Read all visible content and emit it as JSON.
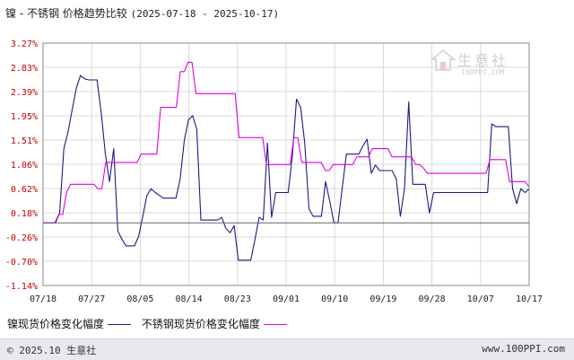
{
  "title": {
    "text": "镍 - 不锈钢 价格趋势比较",
    "date_range": "(2025-07-18 - 2025-10-17)"
  },
  "colors": {
    "nickel": "#1a1a80",
    "stainless": "#e000e0",
    "axis": "#888888",
    "grid": "#d8d8d8",
    "tick_y": "#c00000"
  },
  "legend": {
    "nickel": "镍现货价格变化幅度",
    "stainless": "不锈钢现货价格变化幅度"
  },
  "watermark": {
    "cn": "生意社",
    "en": "100PPI.COM"
  },
  "footer": {
    "copyright": "© 2025.10 生意社",
    "url": "www.100PPI.com"
  },
  "chart_data": {
    "type": "line",
    "x_tick_labels": [
      "07/18",
      "07/27",
      "08/05",
      "08/14",
      "08/23",
      "09/01",
      "09/10",
      "09/19",
      "09/28",
      "10/07",
      "10/17"
    ],
    "y_tick_labels": [
      "3.27%",
      "2.83%",
      "2.39%",
      "1.95%",
      "1.51%",
      "1.06%",
      "0.62%",
      "0.18%",
      "-0.26%",
      "-0.70%",
      "-1.14%"
    ],
    "ylim": [
      -1.14,
      3.27
    ],
    "grid": true,
    "legend_position": "bottom",
    "series": [
      {
        "name": "镍现货价格变化幅度",
        "color": "#1a1a80",
        "values": [
          0,
          0,
          0,
          0,
          0.18,
          1.35,
          1.65,
          2.05,
          2.45,
          2.68,
          2.62,
          2.6,
          2.6,
          2.6,
          2.0,
          1.25,
          0.75,
          1.35,
          -0.15,
          -0.3,
          -0.42,
          -0.42,
          -0.42,
          -0.25,
          0.12,
          0.5,
          0.62,
          0.55,
          0.5,
          0.45,
          0.45,
          0.45,
          0.45,
          0.8,
          1.5,
          1.87,
          1.95,
          1.7,
          0.05,
          0.05,
          0.05,
          0.05,
          0.05,
          0.1,
          -0.1,
          -0.18,
          -0.05,
          -0.68,
          -0.68,
          -0.68,
          -0.68,
          -0.3,
          0.1,
          0.05,
          1.45,
          0.1,
          0.55,
          0.55,
          0.55,
          0.55,
          1.2,
          2.25,
          2.1,
          1.45,
          0.25,
          0.12,
          0.12,
          0.12,
          0.75,
          0.4,
          0,
          0,
          0.62,
          1.25,
          1.25,
          1.25,
          1.25,
          1.4,
          1.52,
          0.9,
          1.05,
          0.95,
          0.95,
          0.95,
          0.95,
          0.8,
          0.12,
          0.62,
          2.2,
          0.7,
          0.7,
          0.7,
          0.7,
          0.18,
          0.55,
          0.55,
          0.55,
          0.55,
          0.55,
          0.55,
          0.55,
          0.55,
          0.55,
          0.55,
          0.55,
          0.55,
          0.55,
          0.55,
          1.8,
          1.75,
          1.75,
          1.75,
          1.75,
          0.62,
          0.35,
          0.62,
          0.55,
          0.62
        ]
      },
      {
        "name": "不锈钢现货价格变化幅度",
        "color": "#e000e0",
        "values": [
          0,
          0,
          0,
          0,
          0.15,
          0.15,
          0.55,
          0.7,
          0.7,
          0.7,
          0.7,
          0.7,
          0.7,
          0.7,
          0.62,
          0.62,
          1.1,
          1.1,
          1.1,
          1.1,
          1.1,
          1.1,
          1.1,
          1.1,
          1.1,
          1.25,
          1.25,
          1.25,
          1.25,
          1.25,
          2.1,
          2.1,
          2.1,
          2.1,
          2.1,
          2.75,
          2.75,
          2.92,
          2.92,
          2.35,
          2.35,
          2.35,
          2.35,
          2.35,
          2.35,
          2.35,
          2.35,
          2.35,
          2.35,
          2.35,
          1.55,
          1.55,
          1.55,
          1.55,
          1.55,
          1.55,
          1.55,
          1.06,
          1.06,
          1.06,
          1.06,
          1.06,
          1.06,
          1.06,
          1.55,
          1.55,
          1.1,
          1.1,
          1.1,
          1.1,
          1.1,
          1.1,
          0.95,
          0.95,
          1.06,
          1.06,
          1.06,
          1.06,
          1.06,
          1.06,
          1.2,
          1.2,
          1.2,
          1.2,
          1.35,
          1.35,
          1.35,
          1.35,
          1.35,
          1.2,
          1.2,
          1.2,
          1.2,
          1.2,
          1.2,
          1.06,
          1.06,
          1.0,
          0.9,
          0.9,
          0.9,
          0.9,
          0.9,
          0.9,
          0.9,
          0.9,
          0.9,
          0.9,
          0.9,
          0.9,
          0.9,
          0.9,
          0.9,
          0.9,
          1.15,
          1.15,
          1.15,
          1.15,
          1.15,
          0.75,
          0.75,
          0.75,
          0.75,
          0.75,
          0.65
        ]
      }
    ]
  }
}
